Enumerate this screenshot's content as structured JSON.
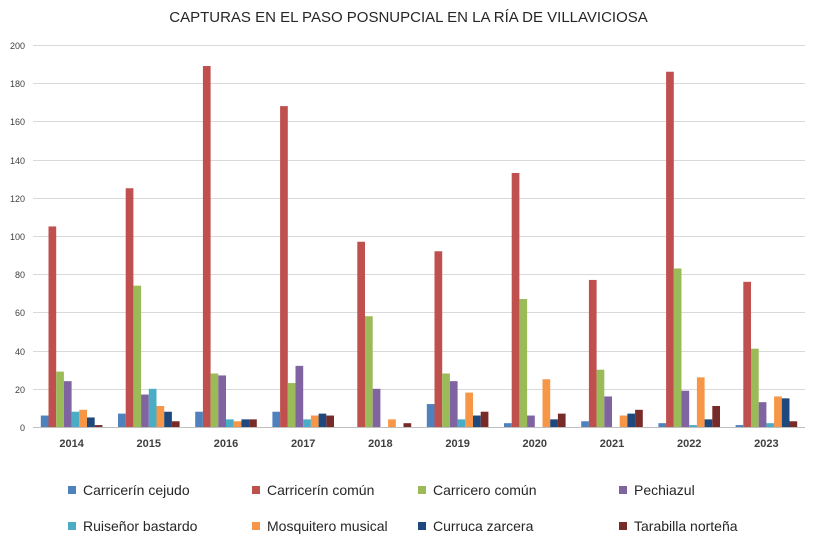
{
  "chart_data": {
    "type": "bar",
    "title": "CAPTURAS EN EL PASO POSNUPCIAL EN LA RÍA DE VILLAVICIOSA",
    "xlabel": "",
    "ylabel": "",
    "ylim": [
      0,
      200
    ],
    "yticks": [
      0,
      20,
      40,
      60,
      80,
      100,
      120,
      140,
      160,
      180,
      200
    ],
    "grid": true,
    "legend_position": "bottom",
    "categories": [
      "2014",
      "2015",
      "2016",
      "2017",
      "2018",
      "2019",
      "2020",
      "2021",
      "2022",
      "2023"
    ],
    "series": [
      {
        "name": "Carricerín cejudo",
        "color": "#4F81BD",
        "values": [
          6,
          7,
          8,
          8,
          0,
          12,
          2,
          3,
          2,
          1
        ]
      },
      {
        "name": "Carricerín común",
        "color": "#C0504D",
        "values": [
          105,
          125,
          189,
          168,
          97,
          92,
          133,
          77,
          186,
          76
        ]
      },
      {
        "name": "Carricero común",
        "color": "#9BBB59",
        "values": [
          29,
          74,
          28,
          23,
          58,
          28,
          67,
          30,
          83,
          41
        ]
      },
      {
        "name": "Pechiazul",
        "color": "#8064A2",
        "values": [
          24,
          17,
          27,
          32,
          20,
          24,
          6,
          16,
          19,
          13
        ]
      },
      {
        "name": "Ruiseñor bastardo",
        "color": "#4BACC6",
        "values": [
          8,
          20,
          4,
          4,
          0,
          4,
          0,
          0,
          1,
          2
        ]
      },
      {
        "name": "Mosquitero musical",
        "color": "#F79646",
        "values": [
          9,
          11,
          3,
          6,
          4,
          18,
          25,
          6,
          26,
          16
        ]
      },
      {
        "name": "Curruca zarcera",
        "color": "#1F497D",
        "values": [
          5,
          8,
          4,
          7,
          0,
          6,
          4,
          7,
          4,
          15
        ]
      },
      {
        "name": "Tarabilla norteña",
        "color": "#772C2A",
        "values": [
          1,
          3,
          4,
          6,
          2,
          8,
          7,
          9,
          11,
          3
        ]
      }
    ]
  }
}
